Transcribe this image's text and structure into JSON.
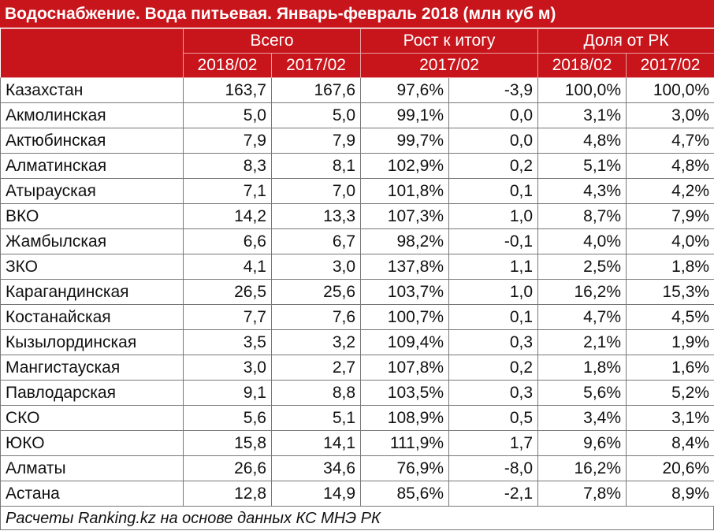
{
  "title": "Водоснабжение. Вода питьевая. Январь-февраль 2018 (млн куб м)",
  "header": {
    "groups": {
      "total": "Всего",
      "growth": "Рост к итогу",
      "share": "Доля от РК"
    },
    "subcols": {
      "total_2018": "2018/02",
      "total_2017": "2017/02",
      "growth_2017": "2017/02",
      "share_2018": "2018/02",
      "share_2017": "2017/02"
    }
  },
  "rows": [
    {
      "region": "Казахстан",
      "total_2018": "163,7",
      "total_2017": "167,6",
      "growth_pct": "97,6%",
      "growth_abs": "-3,9",
      "share_2018": "100,0%",
      "share_2017": "100,0%"
    },
    {
      "region": "Акмолинская",
      "total_2018": "5,0",
      "total_2017": "5,0",
      "growth_pct": "99,1%",
      "growth_abs": "0,0",
      "share_2018": "3,1%",
      "share_2017": "3,0%"
    },
    {
      "region": "Актюбинская",
      "total_2018": "7,9",
      "total_2017": "7,9",
      "growth_pct": "99,7%",
      "growth_abs": "0,0",
      "share_2018": "4,8%",
      "share_2017": "4,7%"
    },
    {
      "region": "Алматинская",
      "total_2018": "8,3",
      "total_2017": "8,1",
      "growth_pct": "102,9%",
      "growth_abs": "0,2",
      "share_2018": "5,1%",
      "share_2017": "4,8%"
    },
    {
      "region": "Атырауская",
      "total_2018": "7,1",
      "total_2017": "7,0",
      "growth_pct": "101,8%",
      "growth_abs": "0,1",
      "share_2018": "4,3%",
      "share_2017": "4,2%"
    },
    {
      "region": "ВКО",
      "total_2018": "14,2",
      "total_2017": "13,3",
      "growth_pct": "107,3%",
      "growth_abs": "1,0",
      "share_2018": "8,7%",
      "share_2017": "7,9%"
    },
    {
      "region": "Жамбылская",
      "total_2018": "6,6",
      "total_2017": "6,7",
      "growth_pct": "98,2%",
      "growth_abs": "-0,1",
      "share_2018": "4,0%",
      "share_2017": "4,0%"
    },
    {
      "region": "ЗКО",
      "total_2018": "4,1",
      "total_2017": "3,0",
      "growth_pct": "137,8%",
      "growth_abs": "1,1",
      "share_2018": "2,5%",
      "share_2017": "1,8%"
    },
    {
      "region": "Карагандинская",
      "total_2018": "26,5",
      "total_2017": "25,6",
      "growth_pct": "103,7%",
      "growth_abs": "1,0",
      "share_2018": "16,2%",
      "share_2017": "15,3%"
    },
    {
      "region": "Костанайская",
      "total_2018": "7,7",
      "total_2017": "7,6",
      "growth_pct": "100,7%",
      "growth_abs": "0,1",
      "share_2018": "4,7%",
      "share_2017": "4,5%"
    },
    {
      "region": "Кызылординская",
      "total_2018": "3,5",
      "total_2017": "3,2",
      "growth_pct": "109,4%",
      "growth_abs": "0,3",
      "share_2018": "2,1%",
      "share_2017": "1,9%"
    },
    {
      "region": "Мангистауская",
      "total_2018": "3,0",
      "total_2017": "2,7",
      "growth_pct": "107,8%",
      "growth_abs": "0,2",
      "share_2018": "1,8%",
      "share_2017": "1,6%"
    },
    {
      "region": "Павлодарская",
      "total_2018": "9,1",
      "total_2017": "8,8",
      "growth_pct": "103,5%",
      "growth_abs": "0,3",
      "share_2018": "5,6%",
      "share_2017": "5,2%"
    },
    {
      "region": "СКО",
      "total_2018": "5,6",
      "total_2017": "5,1",
      "growth_pct": "108,9%",
      "growth_abs": "0,5",
      "share_2018": "3,4%",
      "share_2017": "3,1%"
    },
    {
      "region": "ЮКО",
      "total_2018": "15,8",
      "total_2017": "14,1",
      "growth_pct": "111,9%",
      "growth_abs": "1,7",
      "share_2018": "9,6%",
      "share_2017": "8,4%"
    },
    {
      "region": "Алматы",
      "total_2018": "26,6",
      "total_2017": "34,6",
      "growth_pct": "76,9%",
      "growth_abs": "-8,0",
      "share_2018": "16,2%",
      "share_2017": "20,6%"
    },
    {
      "region": "Астана",
      "total_2018": "12,8",
      "total_2017": "14,9",
      "growth_pct": "85,6%",
      "growth_abs": "-2,1",
      "share_2018": "7,8%",
      "share_2017": "8,9%"
    }
  ],
  "footer": "Расчеты Ranking.kz на основе данных КС МНЭ РК",
  "colors": {
    "header_bg": "#c8141b",
    "header_text": "#ffffff"
  }
}
